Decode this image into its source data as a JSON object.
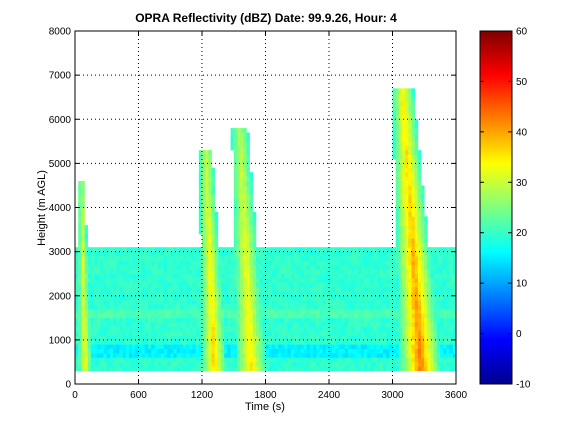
{
  "chart_data": {
    "type": "heatmap",
    "title": "OPRA Reflectivity (dBZ)  Date: 99.9.26, Hour: 4",
    "xlabel": "Time (s)",
    "ylabel": "Height (m AGL)",
    "xlim": [
      0,
      3600
    ],
    "ylim": [
      0,
      8000
    ],
    "xticks": [
      "0",
      "600",
      "1200",
      "1800",
      "2400",
      "3000",
      "3600"
    ],
    "yticks": [
      "0",
      "1000",
      "2000",
      "3000",
      "4000",
      "5000",
      "6000",
      "7000",
      "8000"
    ],
    "grid": true,
    "colorbar": {
      "range": [
        -10,
        60
      ],
      "ticks": [
        "-10",
        "0",
        "10",
        "20",
        "30",
        "40",
        "50",
        "60"
      ],
      "colormap": "jet"
    },
    "echo_features": [
      {
        "time_center_s": 80,
        "time_width_s": 60,
        "top_height_m": 4500,
        "peak_dbz": 34
      },
      {
        "time_center_s": 1300,
        "time_width_s": 120,
        "top_height_m": 5200,
        "peak_dbz": 36
      },
      {
        "time_center_s": 1650,
        "time_width_s": 150,
        "top_height_m": 5700,
        "peak_dbz": 34
      },
      {
        "time_center_s": 3250,
        "time_width_s": 200,
        "top_height_m": 6600,
        "peak_dbz": 42
      }
    ],
    "stratiform_layer": {
      "time_range_s": [
        0,
        3600
      ],
      "height_range_m": [
        300,
        3000
      ],
      "typical_dbz": 20
    }
  }
}
